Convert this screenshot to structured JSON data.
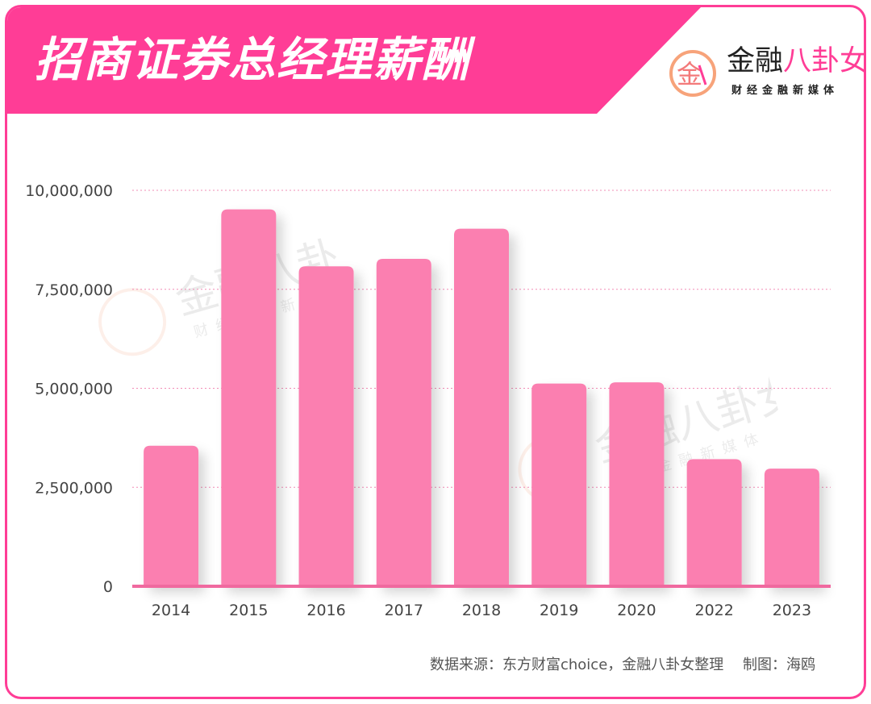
{
  "header": {
    "title": "招商证券总经理薪酬",
    "brand_name": "金融八卦女",
    "brand_name_plain": "金融",
    "brand_name_accent": "八卦女",
    "brand_sub": "财经金融新媒体",
    "brand_logo_icon": "jin-circle-logo-icon"
  },
  "colors": {
    "accent": "#ff3d96",
    "bar": "#fb7fb0",
    "grid": "#f28cb6",
    "axis": "#f0699f"
  },
  "chart_data": {
    "type": "bar",
    "categories": [
      "2014",
      "2015",
      "2016",
      "2017",
      "2018",
      "2019",
      "2020",
      "2022",
      "2023"
    ],
    "values": [
      3550000,
      9520000,
      8080000,
      8270000,
      9030000,
      5120000,
      5150000,
      3210000,
      2970000
    ],
    "ylim": [
      0,
      10000000
    ],
    "yticks": [
      0,
      2500000,
      5000000,
      7500000,
      10000000
    ],
    "ytick_labels": [
      "0",
      "2,500,000",
      "5,000,000",
      "7,500,000",
      "10,000,000"
    ],
    "grid": true,
    "legend": "none"
  },
  "footer": {
    "source": "数据来源：东方财富choice，金融八卦女整理　 制图：海鸥"
  },
  "watermark": {
    "text": "金融八卦女",
    "sub": "财经金融新媒体"
  }
}
